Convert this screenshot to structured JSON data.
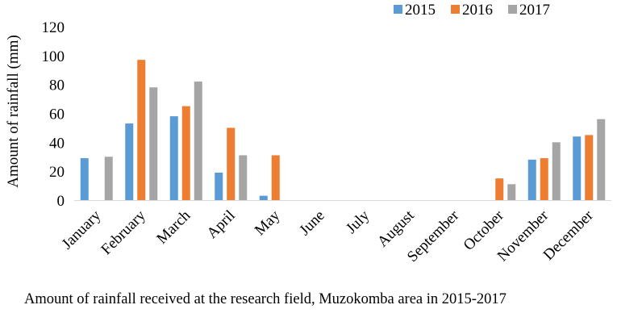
{
  "chart_data": {
    "type": "bar",
    "title": "",
    "xlabel": "",
    "ylabel": "Amount of rainfall (mm)",
    "ylim": [
      0,
      120
    ],
    "yticks": [
      0,
      20,
      40,
      60,
      80,
      100,
      120
    ],
    "grid": false,
    "legend_position": "top-right",
    "categories": [
      "January",
      "February",
      "March",
      "April",
      "May",
      "June",
      "July",
      "August",
      "September",
      "October",
      "November",
      "December"
    ],
    "series": [
      {
        "name": "2015",
        "color": "#5b9bd5",
        "values": [
          29,
          53,
          58,
          19,
          3,
          0,
          0,
          0,
          0,
          0,
          28,
          44
        ]
      },
      {
        "name": "2016",
        "color": "#ed7d31",
        "values": [
          0,
          97,
          65,
          50,
          31,
          0,
          0,
          0,
          0,
          15,
          29,
          45
        ]
      },
      {
        "name": "2017",
        "color": "#a5a5a5",
        "values": [
          30,
          78,
          82,
          31,
          0,
          0,
          0,
          0,
          0,
          11,
          40,
          56
        ]
      }
    ]
  },
  "caption": "Amount of rainfall received at the research field, Muzokomba area in 2015-2017"
}
